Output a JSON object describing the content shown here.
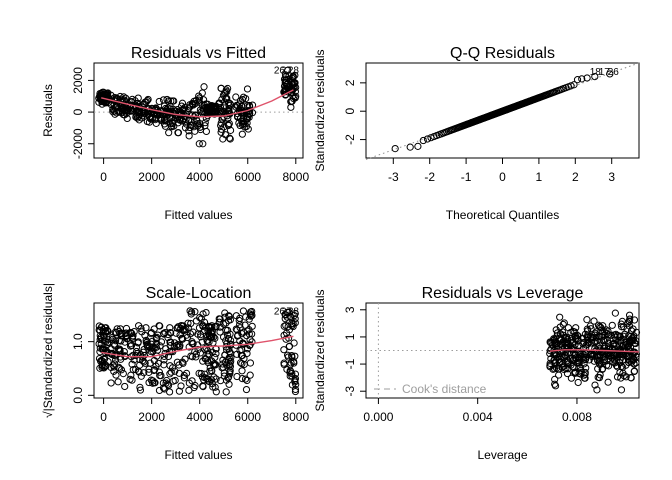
{
  "chart_data": [
    {
      "type": "scatter",
      "title": "Residuals vs Fitted",
      "xlabel": "Fitted values",
      "ylabel": "Residuals",
      "xlim": [
        -400,
        8300
      ],
      "ylim": [
        -2900,
        3100
      ],
      "xticks": [
        0,
        2000,
        4000,
        6000,
        8000
      ],
      "yticks": [
        -2000,
        0,
        2000
      ],
      "reference_line": 0,
      "smoother": {
        "x": [
          -100,
          1000,
          2000,
          3000,
          4000,
          5000,
          6000,
          7000,
          7900
        ],
        "y": [
          900,
          500,
          150,
          -150,
          -300,
          -250,
          100,
          700,
          1400
        ]
      },
      "point_labels": [
        "26",
        "27",
        "28"
      ],
      "clusters": [
        {
          "x": [
            -200,
            200
          ],
          "y": [
            500,
            1400
          ]
        },
        {
          "x": [
            300,
            1000
          ],
          "y": [
            -400,
            1100
          ]
        },
        {
          "x": [
            1100,
            1900
          ],
          "y": [
            -600,
            900
          ]
        },
        {
          "x": [
            1900,
            2700
          ],
          "y": [
            -900,
            800
          ]
        },
        {
          "x": [
            2700,
            3500
          ],
          "y": [
            -1300,
            700
          ]
        },
        {
          "x": [
            3500,
            4300
          ],
          "y": [
            -2000,
            1600
          ]
        },
        {
          "x": [
            4300,
            4700
          ],
          "y": [
            -300,
            500
          ]
        },
        {
          "x": [
            4800,
            5300
          ],
          "y": [
            -1700,
            1500
          ]
        },
        {
          "x": [
            5500,
            6200
          ],
          "y": [
            -1700,
            1700
          ]
        },
        {
          "x": [
            7500,
            8000
          ],
          "y": [
            300,
            2700
          ]
        }
      ]
    },
    {
      "type": "scatter",
      "title": "Q-Q Residuals",
      "xlabel": "Theoretical Quantiles",
      "ylabel": "Standardized residuals",
      "xlim": [
        -3.75,
        3.75
      ],
      "ylim": [
        -3.3,
        3.4
      ],
      "xticks": [
        -3,
        -2,
        -1,
        0,
        1,
        2,
        3
      ],
      "yticks": [
        -2,
        0,
        2
      ],
      "reference_line": {
        "x": [
          -3.75,
          3.75
        ],
        "y": [
          -3.4,
          3.4
        ]
      },
      "point_labels": [
        "18",
        "17",
        "26"
      ]
    },
    {
      "type": "scatter",
      "title": "Scale-Location",
      "xlabel": "Fitted values",
      "ylabel": "√|Standardized residuals|",
      "xlim": [
        -400,
        8300
      ],
      "ylim": [
        -0.05,
        1.72
      ],
      "xticks": [
        0,
        2000,
        4000,
        6000,
        8000
      ],
      "yticks": [
        0.0,
        1.0
      ],
      "ytick_labels": [
        "0.0",
        "1.0"
      ],
      "smoother": {
        "x": [
          -100,
          1000,
          2000,
          3000,
          4000,
          5000,
          6000,
          7000,
          7900
        ],
        "y": [
          0.8,
          0.72,
          0.72,
          0.82,
          0.9,
          0.92,
          0.95,
          1.02,
          1.1
        ]
      },
      "point_labels": [
        "26",
        "27",
        "28"
      ]
    },
    {
      "type": "scatter",
      "title": "Residuals vs Leverage",
      "xlabel": "Leverage",
      "ylabel": "Standardized residuals",
      "xlim": [
        -0.0005,
        0.0105
      ],
      "ylim": [
        -3.5,
        3.5
      ],
      "xticks": [
        0.0,
        0.004,
        0.008
      ],
      "xtick_labels": [
        "0.000",
        "0.004",
        "0.008"
      ],
      "yticks": [
        -3,
        -1,
        1,
        3
      ],
      "reference_line": 0,
      "smoother": {
        "x": [
          0.0069,
          0.0075,
          0.0082,
          0.009,
          0.0098,
          0.0105
        ],
        "y": [
          -0.05,
          0.05,
          0.05,
          0.0,
          -0.05,
          -0.1
        ]
      },
      "legend": {
        "label": "Cook's distance",
        "position": "bottom-left"
      }
    }
  ]
}
